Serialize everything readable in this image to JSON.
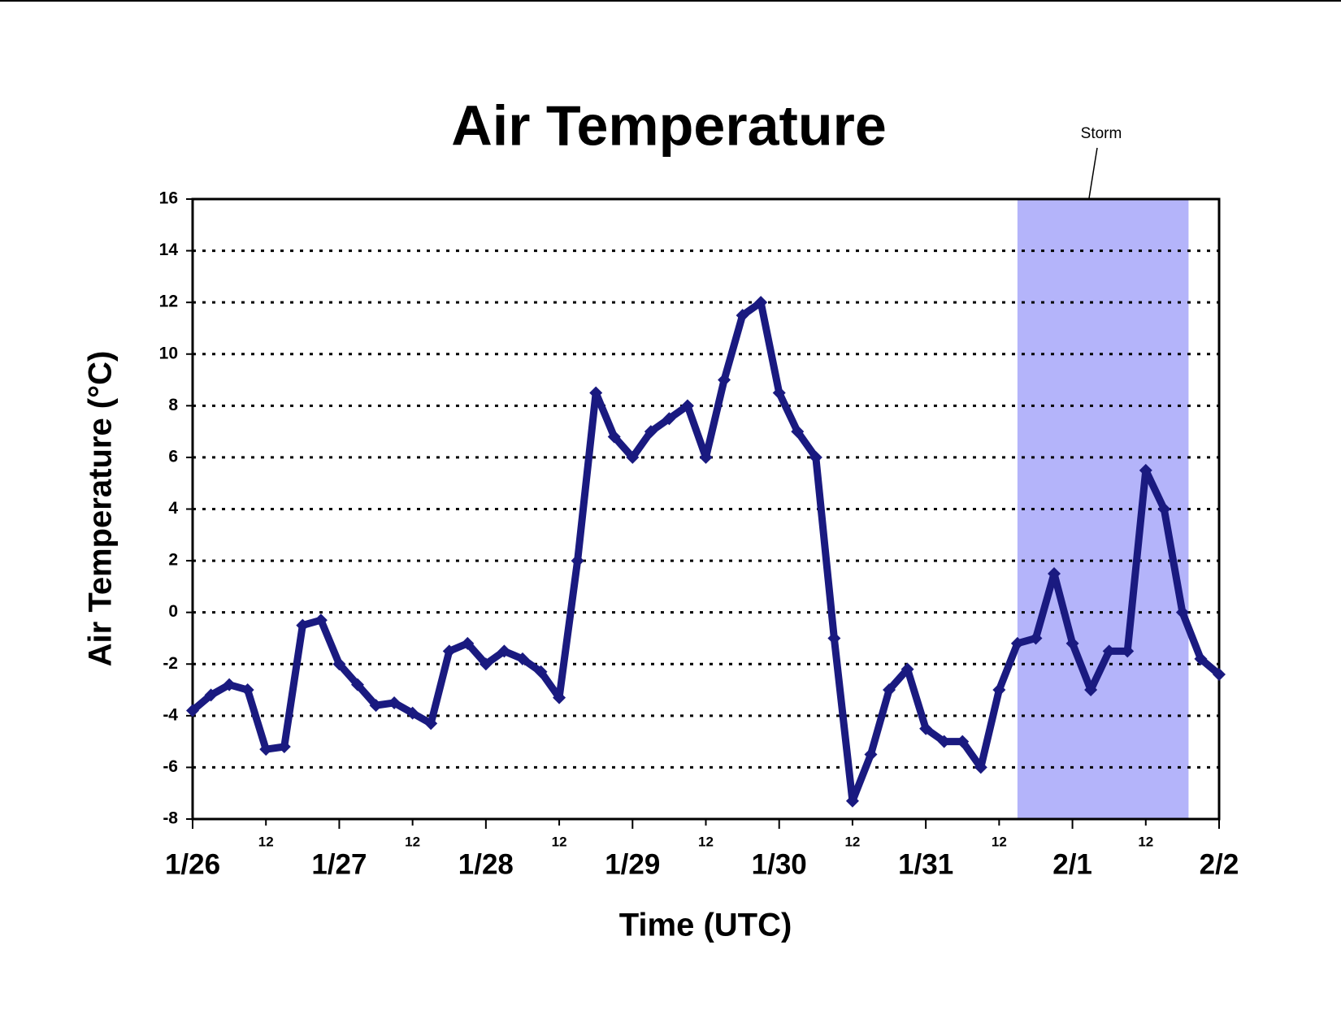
{
  "chart_data": {
    "type": "line",
    "title": "Air Temperature",
    "x_label": "Time (UTC)",
    "y_label": "Air Temperature (°C)",
    "x": [
      0,
      3,
      6,
      9,
      12,
      15,
      18,
      21,
      24,
      27,
      30,
      33,
      36,
      39,
      42,
      45,
      48,
      51,
      54,
      57,
      60,
      63,
      66,
      69,
      72,
      75,
      78,
      81,
      84,
      87,
      90,
      93,
      96,
      99,
      102,
      105,
      108,
      111,
      114,
      117,
      120,
      123,
      126,
      129,
      132,
      135,
      138,
      141,
      144,
      147,
      150,
      153,
      156,
      159,
      162,
      165,
      168
    ],
    "series": [
      {
        "name": "Air Temperature",
        "color": "#1a1a80",
        "values": [
          -3.8,
          -3.2,
          -2.8,
          -3.0,
          -5.3,
          -5.2,
          -0.5,
          -0.3,
          -2.0,
          -2.8,
          -3.6,
          -3.5,
          -3.9,
          -4.3,
          -1.5,
          -1.2,
          -2.0,
          -1.5,
          -1.8,
          -2.3,
          -3.3,
          2.0,
          8.5,
          6.8,
          6.0,
          7.0,
          7.5,
          8.0,
          6.0,
          9.0,
          11.5,
          12.0,
          8.5,
          7.0,
          6.0,
          -1.0,
          -7.3,
          -5.5,
          -3.0,
          -2.2,
          -4.5,
          -5.0,
          -5.0,
          -6.0,
          -3.0,
          -1.2,
          -1.0,
          1.5,
          -1.2,
          -3.0,
          -1.5,
          -1.5,
          5.5,
          4.0,
          0.0,
          -1.8,
          -2.4
        ]
      }
    ],
    "xlim": [
      0,
      168
    ],
    "xticks": [
      {
        "value": 0,
        "label": "1/26"
      },
      {
        "value": 12,
        "label": "12"
      },
      {
        "value": 24,
        "label": "1/27"
      },
      {
        "value": 36,
        "label": "12"
      },
      {
        "value": 48,
        "label": "1/28"
      },
      {
        "value": 60,
        "label": "12"
      },
      {
        "value": 72,
        "label": "1/29"
      },
      {
        "value": 84,
        "label": "12"
      },
      {
        "value": 96,
        "label": "1/30"
      },
      {
        "value": 108,
        "label": "12"
      },
      {
        "value": 120,
        "label": "1/31"
      },
      {
        "value": 132,
        "label": "12"
      },
      {
        "value": 144,
        "label": "2/1"
      },
      {
        "value": 156,
        "label": "12"
      },
      {
        "value": 168,
        "label": "2/2"
      }
    ],
    "ylim": [
      -8,
      16
    ],
    "yticks": [
      -8,
      -6,
      -4,
      -2,
      0,
      2,
      4,
      6,
      8,
      10,
      12,
      14,
      16
    ],
    "grid": true,
    "storm": {
      "label": "Storm",
      "x": [
        135,
        163
      ],
      "color": "#b4b4fa"
    }
  }
}
